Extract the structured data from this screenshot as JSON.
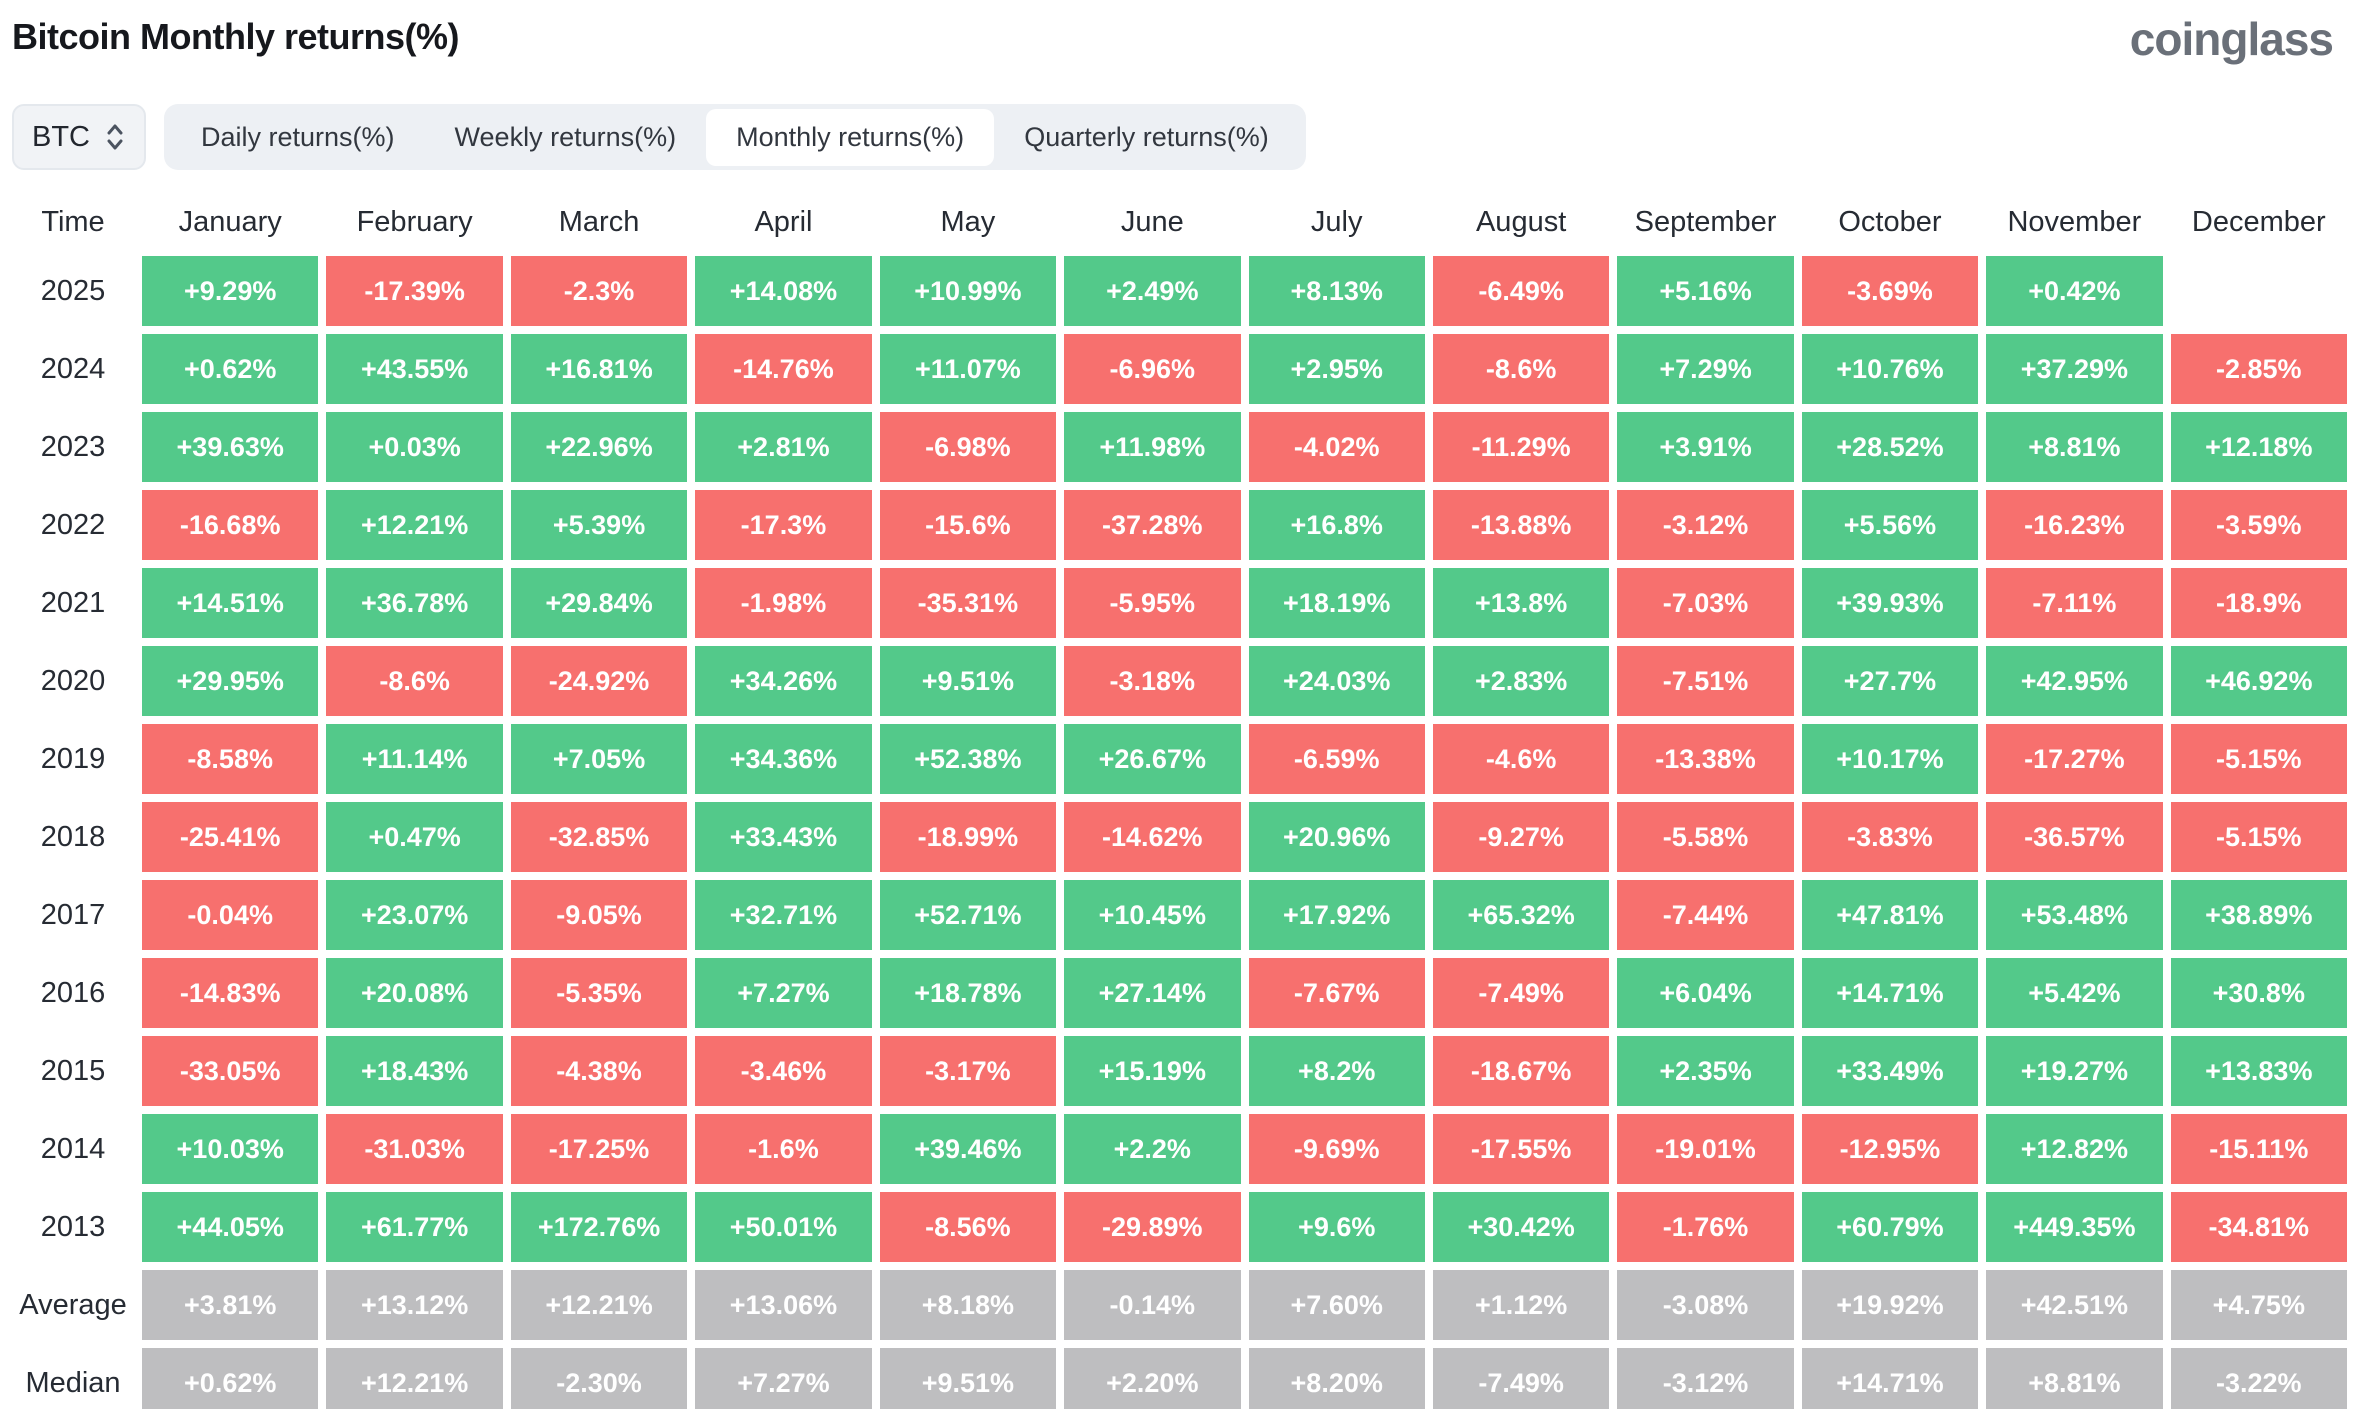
{
  "page": {
    "title": "Bitcoin Monthly returns(%)",
    "brand": "coinglass"
  },
  "controls": {
    "coin_selector": {
      "value": "BTC",
      "icon": "updown-chevron-icon"
    },
    "tabs": [
      {
        "label": "Daily returns(%)",
        "active": false
      },
      {
        "label": "Weekly returns(%)",
        "active": false
      },
      {
        "label": "Monthly returns(%)",
        "active": true
      },
      {
        "label": "Quarterly returns(%)",
        "active": false
      }
    ]
  },
  "colors": {
    "positive": "#53c98a",
    "negative": "#f7706e",
    "neutral": "#bebec0",
    "cell_text": "#ffffff",
    "header_text": "#262b33"
  },
  "table": {
    "time_header": "Time",
    "columns": [
      "January",
      "February",
      "March",
      "April",
      "May",
      "June",
      "July",
      "August",
      "September",
      "October",
      "November",
      "December"
    ],
    "rows": [
      {
        "time": "2025",
        "kind": "year",
        "values": [
          "+9.29%",
          "-17.39%",
          "-2.3%",
          "+14.08%",
          "+10.99%",
          "+2.49%",
          "+8.13%",
          "-6.49%",
          "+5.16%",
          "-3.69%",
          "+0.42%",
          null
        ]
      },
      {
        "time": "2024",
        "kind": "year",
        "values": [
          "+0.62%",
          "+43.55%",
          "+16.81%",
          "-14.76%",
          "+11.07%",
          "-6.96%",
          "+2.95%",
          "-8.6%",
          "+7.29%",
          "+10.76%",
          "+37.29%",
          "-2.85%"
        ]
      },
      {
        "time": "2023",
        "kind": "year",
        "values": [
          "+39.63%",
          "+0.03%",
          "+22.96%",
          "+2.81%",
          "-6.98%",
          "+11.98%",
          "-4.02%",
          "-11.29%",
          "+3.91%",
          "+28.52%",
          "+8.81%",
          "+12.18%"
        ]
      },
      {
        "time": "2022",
        "kind": "year",
        "values": [
          "-16.68%",
          "+12.21%",
          "+5.39%",
          "-17.3%",
          "-15.6%",
          "-37.28%",
          "+16.8%",
          "-13.88%",
          "-3.12%",
          "+5.56%",
          "-16.23%",
          "-3.59%"
        ]
      },
      {
        "time": "2021",
        "kind": "year",
        "values": [
          "+14.51%",
          "+36.78%",
          "+29.84%",
          "-1.98%",
          "-35.31%",
          "-5.95%",
          "+18.19%",
          "+13.8%",
          "-7.03%",
          "+39.93%",
          "-7.11%",
          "-18.9%"
        ]
      },
      {
        "time": "2020",
        "kind": "year",
        "values": [
          "+29.95%",
          "-8.6%",
          "-24.92%",
          "+34.26%",
          "+9.51%",
          "-3.18%",
          "+24.03%",
          "+2.83%",
          "-7.51%",
          "+27.7%",
          "+42.95%",
          "+46.92%"
        ]
      },
      {
        "time": "2019",
        "kind": "year",
        "values": [
          "-8.58%",
          "+11.14%",
          "+7.05%",
          "+34.36%",
          "+52.38%",
          "+26.67%",
          "-6.59%",
          "-4.6%",
          "-13.38%",
          "+10.17%",
          "-17.27%",
          "-5.15%"
        ]
      },
      {
        "time": "2018",
        "kind": "year",
        "values": [
          "-25.41%",
          "+0.47%",
          "-32.85%",
          "+33.43%",
          "-18.99%",
          "-14.62%",
          "+20.96%",
          "-9.27%",
          "-5.58%",
          "-3.83%",
          "-36.57%",
          "-5.15%"
        ]
      },
      {
        "time": "2017",
        "kind": "year",
        "values": [
          "-0.04%",
          "+23.07%",
          "-9.05%",
          "+32.71%",
          "+52.71%",
          "+10.45%",
          "+17.92%",
          "+65.32%",
          "-7.44%",
          "+47.81%",
          "+53.48%",
          "+38.89%"
        ]
      },
      {
        "time": "2016",
        "kind": "year",
        "values": [
          "-14.83%",
          "+20.08%",
          "-5.35%",
          "+7.27%",
          "+18.78%",
          "+27.14%",
          "-7.67%",
          "-7.49%",
          "+6.04%",
          "+14.71%",
          "+5.42%",
          "+30.8%"
        ]
      },
      {
        "time": "2015",
        "kind": "year",
        "values": [
          "-33.05%",
          "+18.43%",
          "-4.38%",
          "-3.46%",
          "-3.17%",
          "+15.19%",
          "+8.2%",
          "-18.67%",
          "+2.35%",
          "+33.49%",
          "+19.27%",
          "+13.83%"
        ]
      },
      {
        "time": "2014",
        "kind": "year",
        "values": [
          "+10.03%",
          "-31.03%",
          "-17.25%",
          "-1.6%",
          "+39.46%",
          "+2.2%",
          "-9.69%",
          "-17.55%",
          "-19.01%",
          "-12.95%",
          "+12.82%",
          "-15.11%"
        ]
      },
      {
        "time": "2013",
        "kind": "year",
        "values": [
          "+44.05%",
          "+61.77%",
          "+172.76%",
          "+50.01%",
          "-8.56%",
          "-29.89%",
          "+9.6%",
          "+30.42%",
          "-1.76%",
          "+60.79%",
          "+449.35%",
          "-34.81%"
        ]
      },
      {
        "time": "Average",
        "kind": "summary",
        "values": [
          "+3.81%",
          "+13.12%",
          "+12.21%",
          "+13.06%",
          "+8.18%",
          "-0.14%",
          "+7.60%",
          "+1.12%",
          "-3.08%",
          "+19.92%",
          "+42.51%",
          "+4.75%"
        ]
      },
      {
        "time": "Median",
        "kind": "summary",
        "values": [
          "+0.62%",
          "+12.21%",
          "-2.30%",
          "+7.27%",
          "+9.51%",
          "+2.20%",
          "+8.20%",
          "-7.49%",
          "-3.12%",
          "+14.71%",
          "+8.81%",
          "-3.22%"
        ]
      }
    ]
  }
}
